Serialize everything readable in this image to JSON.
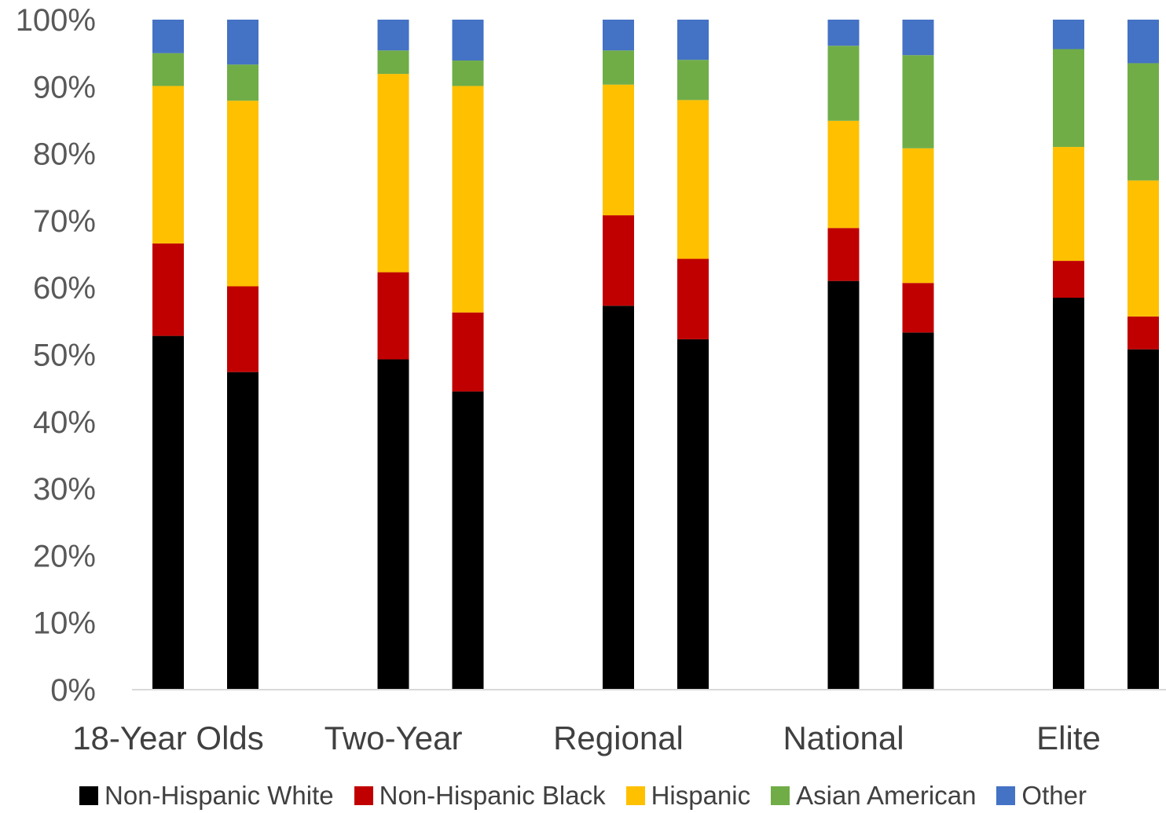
{
  "chart_data": {
    "type": "bar",
    "stacked": true,
    "ylim": [
      0,
      100
    ],
    "y_ticks": [
      "0%",
      "10%",
      "20%",
      "30%",
      "40%",
      "50%",
      "60%",
      "70%",
      "80%",
      "90%",
      "100%"
    ],
    "categories": [
      "18-Year Olds",
      "Two-Year",
      "Regional",
      "National",
      "Elite"
    ],
    "bars_per_category": 2,
    "grid": false,
    "legend_position": "bottom",
    "series": [
      {
        "name": "Non-Hispanic White",
        "color": "#000000",
        "values": [
          [
            52.8,
            47.4
          ],
          [
            49.3,
            44.5
          ],
          [
            57.3,
            52.3
          ],
          [
            61.0,
            53.3
          ],
          [
            58.5,
            50.8
          ]
        ]
      },
      {
        "name": "Non-Hispanic Black",
        "color": "#c00000",
        "values": [
          [
            13.8,
            12.8
          ],
          [
            13.0,
            11.8
          ],
          [
            13.5,
            12.0
          ],
          [
            7.9,
            7.4
          ],
          [
            5.5,
            4.9
          ]
        ]
      },
      {
        "name": "Hispanic",
        "color": "#ffc000",
        "values": [
          [
            23.5,
            27.7
          ],
          [
            29.6,
            33.8
          ],
          [
            19.5,
            23.7
          ],
          [
            16.0,
            20.1
          ],
          [
            17.0,
            20.3
          ]
        ]
      },
      {
        "name": "Asian American",
        "color": "#70ad47",
        "values": [
          [
            4.9,
            5.4
          ],
          [
            3.5,
            3.8
          ],
          [
            5.1,
            6.0
          ],
          [
            11.2,
            13.9
          ],
          [
            14.6,
            17.5
          ]
        ]
      },
      {
        "name": "Other",
        "color": "#4472c4",
        "values": [
          [
            5.0,
            6.7
          ],
          [
            4.6,
            6.1
          ],
          [
            4.6,
            6.0
          ],
          [
            3.9,
            5.3
          ],
          [
            4.4,
            6.5
          ]
        ]
      }
    ]
  }
}
